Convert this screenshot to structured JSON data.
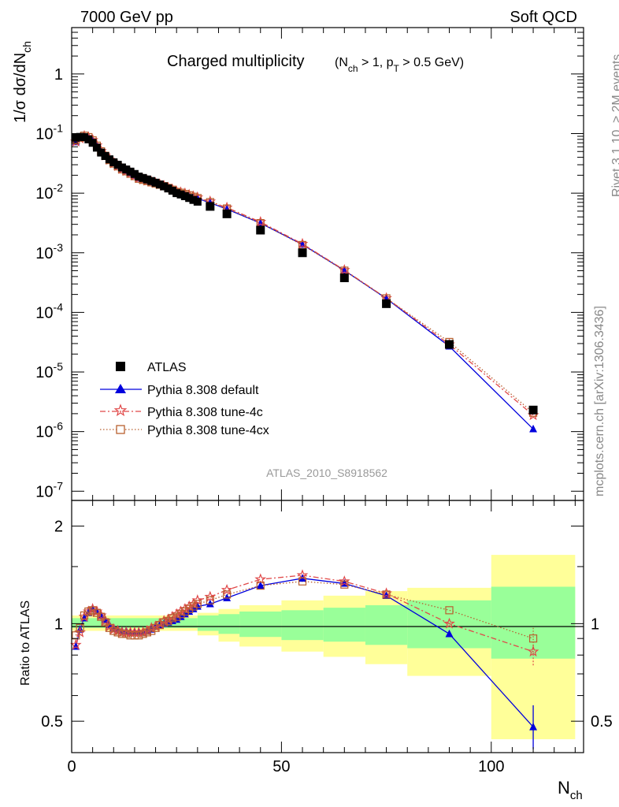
{
  "header": {
    "left": "7000 GeV pp",
    "right": "Soft QCD"
  },
  "side_text": {
    "rivet": "Rivet 3.1.10, ≥ 2M events",
    "mcplots": "mcplots.cern.ch [arXiv:1306.3436]"
  },
  "analysis_id": "ATLAS_2010_S8918562",
  "colors": {
    "data": "#000000",
    "default": "#0000dd",
    "tune4c": "#e04848",
    "tune4cx": "#b86030",
    "band_inner": "#99ff99",
    "band_outer": "#ffff99"
  },
  "chart_data": [
    {
      "type": "scatter",
      "title": "Charged multiplicity",
      "title_cut": "(N_ch > 1, p_T > 0.5 GeV)",
      "xlabel": "N_ch",
      "ylabel": "1/σ dσ/dN_ch",
      "xlim": [
        0,
        122
      ],
      "ylim": [
        7e-08,
        6
      ],
      "log_y": true,
      "x_ticks": [
        "0",
        "50",
        "100"
      ],
      "y_ticks": [
        "10^-7",
        "10^-6",
        "10^-5",
        "10^-4",
        "10^-3",
        "10^-2",
        "10^-1",
        "1"
      ],
      "legend": [
        "ATLAS",
        "Pythia 8.308 default",
        "Pythia 8.308 tune-4c",
        "Pythia 8.308 tune-4cx"
      ],
      "legend_position": "bottom-left",
      "x": [
        1,
        2,
        3,
        4,
        5,
        6,
        7,
        8,
        9,
        10,
        11,
        12,
        13,
        14,
        15,
        16,
        17,
        18,
        19,
        20,
        21,
        22,
        23,
        24,
        25,
        26,
        27,
        28,
        29,
        30,
        33,
        37,
        45,
        55,
        65,
        75,
        90,
        110
      ],
      "atlas": [
        0.085,
        0.088,
        0.087,
        0.08,
        0.07,
        0.058,
        0.048,
        0.042,
        0.037,
        0.033,
        0.03,
        0.027,
        0.025,
        0.023,
        0.021,
        0.019,
        0.018,
        0.017,
        0.016,
        0.015,
        0.014,
        0.013,
        0.012,
        0.011,
        0.01,
        0.0095,
        0.0089,
        0.0083,
        0.0077,
        0.0072,
        0.006,
        0.0045,
        0.0024,
        0.001,
        0.00038,
        0.00014,
        2.9e-05,
        2.3e-06
      ],
      "series": [
        {
          "name": "Pythia 8.308 default",
          "ratio": [
            0.85,
            0.96,
            1.04,
            1.08,
            1.11,
            1.09,
            1.06,
            1.03,
            0.99,
            0.97,
            0.96,
            0.95,
            0.95,
            0.94,
            0.94,
            0.94,
            0.94,
            0.95,
            0.96,
            0.98,
            0.99,
            1.0,
            1.01,
            1.02,
            1.03,
            1.05,
            1.07,
            1.09,
            1.11,
            1.13,
            1.15,
            1.2,
            1.31,
            1.38,
            1.33,
            1.22,
            0.93,
            0.48
          ]
        },
        {
          "name": "Pythia 8.308 tune-4c",
          "ratio": [
            0.86,
            0.94,
            1.05,
            1.09,
            1.11,
            1.09,
            1.06,
            1.02,
            0.98,
            0.96,
            0.95,
            0.94,
            0.94,
            0.94,
            0.94,
            0.94,
            0.94,
            0.95,
            0.97,
            0.98,
            1.0,
            1.02,
            1.03,
            1.05,
            1.07,
            1.09,
            1.11,
            1.13,
            1.15,
            1.18,
            1.21,
            1.27,
            1.37,
            1.41,
            1.35,
            1.24,
            1.0,
            0.82
          ]
        },
        {
          "name": "Pythia 8.308 tune-4cx",
          "ratio": [
            0.92,
            0.97,
            1.06,
            1.09,
            1.1,
            1.08,
            1.05,
            1.01,
            0.97,
            0.95,
            0.94,
            0.93,
            0.93,
            0.92,
            0.92,
            0.92,
            0.93,
            0.94,
            0.95,
            0.97,
            0.99,
            1.01,
            1.02,
            1.04,
            1.05,
            1.07,
            1.09,
            1.11,
            1.13,
            1.15,
            1.18,
            1.23,
            1.31,
            1.35,
            1.32,
            1.23,
            1.1,
            0.9
          ]
        }
      ]
    },
    {
      "type": "scatter",
      "ylabel": "Ratio to ATLAS",
      "xlabel": "N_ch",
      "xlim": [
        0,
        122
      ],
      "ylim": [
        0.4,
        2.4
      ],
      "log_y": true,
      "x_ticks": [
        "0",
        "50",
        "100"
      ],
      "y_ticks": [
        "0.5",
        "1",
        "2"
      ],
      "band_edges": [
        0,
        30,
        35,
        40,
        50,
        60,
        70,
        80,
        100,
        120
      ],
      "band_inner": [
        [
          0.97,
          1.04
        ],
        [
          0.95,
          1.06
        ],
        [
          0.93,
          1.07
        ],
        [
          0.91,
          1.09
        ],
        [
          0.89,
          1.1
        ],
        [
          0.88,
          1.12
        ],
        [
          0.86,
          1.14
        ],
        [
          0.84,
          1.18
        ],
        [
          0.78,
          1.3
        ]
      ],
      "band_outer": [
        [
          0.95,
          1.06
        ],
        [
          0.92,
          1.08
        ],
        [
          0.88,
          1.11
        ],
        [
          0.85,
          1.14
        ],
        [
          0.82,
          1.18
        ],
        [
          0.79,
          1.22
        ],
        [
          0.75,
          1.26
        ],
        [
          0.69,
          1.29
        ],
        [
          0.44,
          1.63
        ]
      ]
    }
  ]
}
